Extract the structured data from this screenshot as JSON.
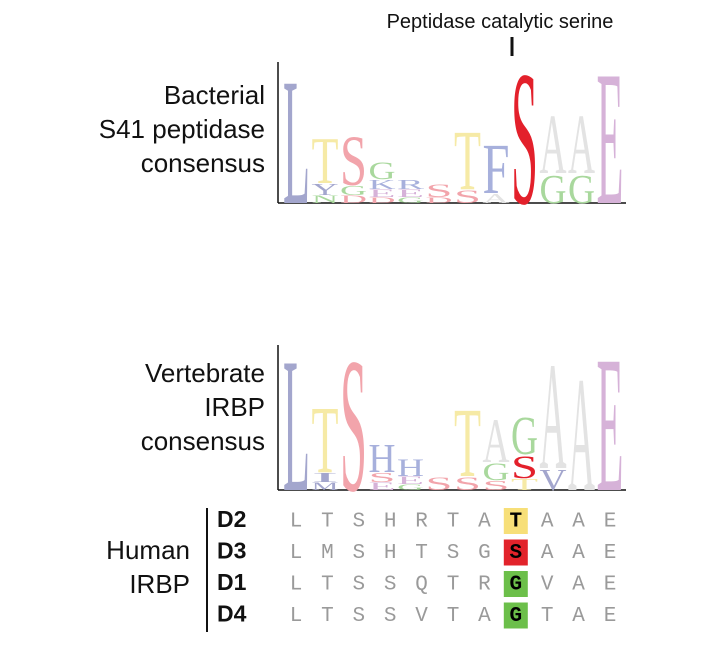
{
  "annotation": "Peptidase catalytic serine",
  "letter_colors": {
    "L": "#a3a6cd",
    "T": "#f6eaa6",
    "S": "#f2a4ab",
    "G": "#a9d89d",
    "A": "#e3e3e3",
    "E": "#d6b2d8",
    "F": "#a7b0dc",
    "Y": "#a3a6cd",
    "N": "#a9d89d",
    "D": "#f2a4ab",
    "K": "#a7b0dc",
    "R": "#a7b0dc",
    "H": "#a7b0dc",
    "I": "#a3a6cd",
    "M": "#a3a6cd",
    "V": "#a3a6cd"
  },
  "logos": [
    {
      "label": [
        "Bacterial",
        "S41 peptidase",
        "consensus"
      ],
      "columns": [
        [
          "L"
        ],
        [
          "T",
          "Y",
          "N"
        ],
        [
          "S",
          "G",
          "D"
        ],
        [
          "G",
          "K",
          "E",
          "D"
        ],
        [
          "R",
          "E",
          "G"
        ],
        [
          "S",
          "D"
        ],
        [
          "T",
          "S"
        ],
        [
          "F",
          "A"
        ],
        [
          "S"
        ],
        [
          "A",
          "G"
        ],
        [
          "A",
          "G"
        ],
        [
          "E"
        ]
      ],
      "highlight": {
        "column": 8,
        "letter": 0,
        "color": "#e3202b"
      }
    },
    {
      "label": [
        "Vertebrate",
        "IRBP",
        "consensus"
      ],
      "columns": [
        [
          "L"
        ],
        [
          "T",
          "I",
          "M"
        ],
        [
          "S"
        ],
        [
          "H",
          "S",
          "E"
        ],
        [
          "H",
          "E",
          "G"
        ],
        [
          "S"
        ],
        [
          "T",
          "S"
        ],
        [
          "A",
          "G",
          "S"
        ],
        [
          "G",
          "S",
          "T"
        ],
        [
          "A",
          "V"
        ],
        [
          "A"
        ],
        [
          "E"
        ]
      ],
      "highlight": {
        "column": 8,
        "letter": 1,
        "color": "#e3202b"
      }
    }
  ],
  "alignment": {
    "label": [
      "Human",
      "IRBP"
    ],
    "highlight_column": 7,
    "rows": [
      {
        "id": "D2",
        "seq": [
          "L",
          "T",
          "S",
          "H",
          "R",
          "T",
          "A",
          "T",
          "A",
          "A",
          "E"
        ],
        "highlight_color": "#f7df78"
      },
      {
        "id": "D3",
        "seq": [
          "L",
          "M",
          "S",
          "H",
          "T",
          "S",
          "G",
          "S",
          "A",
          "A",
          "E"
        ],
        "highlight_color": "#e2232b"
      },
      {
        "id": "D1",
        "seq": [
          "L",
          "T",
          "S",
          "S",
          "Q",
          "T",
          "R",
          "G",
          "V",
          "A",
          "E"
        ],
        "highlight_color": "#6cbf4a"
      },
      {
        "id": "D4",
        "seq": [
          "L",
          "T",
          "S",
          "S",
          "V",
          "T",
          "A",
          "G",
          "T",
          "A",
          "E"
        ],
        "highlight_color": "#6cbf4a"
      }
    ]
  }
}
